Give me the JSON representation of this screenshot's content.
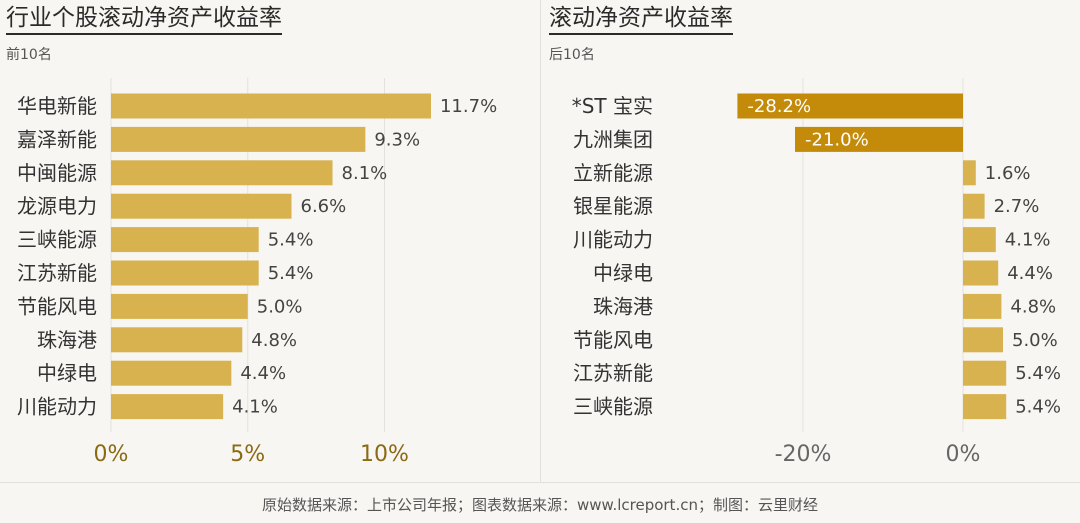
{
  "chart_data": [
    {
      "type": "bar",
      "orientation": "horizontal",
      "title": "行业个股滚动净资产收益率",
      "subtitle": "前10名",
      "categories": [
        "华电新能",
        "嘉泽新能",
        "中闽能源",
        "龙源电力",
        "三峡能源",
        "江苏新能",
        "节能风电",
        "珠海港",
        "中绿电",
        "川能动力"
      ],
      "values": [
        11.7,
        9.3,
        8.1,
        6.6,
        5.4,
        5.4,
        5.0,
        4.8,
        4.4,
        4.1
      ],
      "value_labels": [
        "11.7%",
        "9.3%",
        "8.1%",
        "6.6%",
        "5.4%",
        "5.4%",
        "5.0%",
        "4.8%",
        "4.4%",
        "4.1%"
      ],
      "xlim": [
        0,
        12
      ],
      "xticks": [
        0,
        5,
        10
      ],
      "xtick_labels": [
        "0%",
        "5%",
        "10%"
      ],
      "gridlines": true,
      "colors": {
        "bar": "#d7b24f",
        "tick": "#8a6a12"
      }
    },
    {
      "type": "bar",
      "orientation": "horizontal",
      "title": "滚动净资产收益率",
      "subtitle": "后10名",
      "categories": [
        "*ST 宝实",
        "九洲集团",
        "立新能源",
        "银星能源",
        "川能动力",
        "中绿电",
        "珠海港",
        "节能风电",
        "江苏新能",
        "三峡能源"
      ],
      "values": [
        -28.2,
        -21.0,
        1.6,
        2.7,
        4.1,
        4.4,
        4.8,
        5.0,
        5.4,
        5.4
      ],
      "value_labels": [
        "-28.2%",
        "-21.0%",
        "1.6%",
        "2.7%",
        "4.1%",
        "4.4%",
        "4.8%",
        "5.0%",
        "5.4%",
        "5.4%"
      ],
      "xlim": [
        -30,
        8
      ],
      "xticks": [
        -20,
        0
      ],
      "xtick_labels": [
        "-20%",
        "0%"
      ],
      "gridlines": true,
      "colors": {
        "positive": "#d7b24f",
        "negative": "#c48a09",
        "tick": "#666666"
      }
    }
  ],
  "footer": {
    "source": "原始数据来源：上市公司年报；图表数据来源：www.lcreport.cn；制图：云里财经"
  }
}
